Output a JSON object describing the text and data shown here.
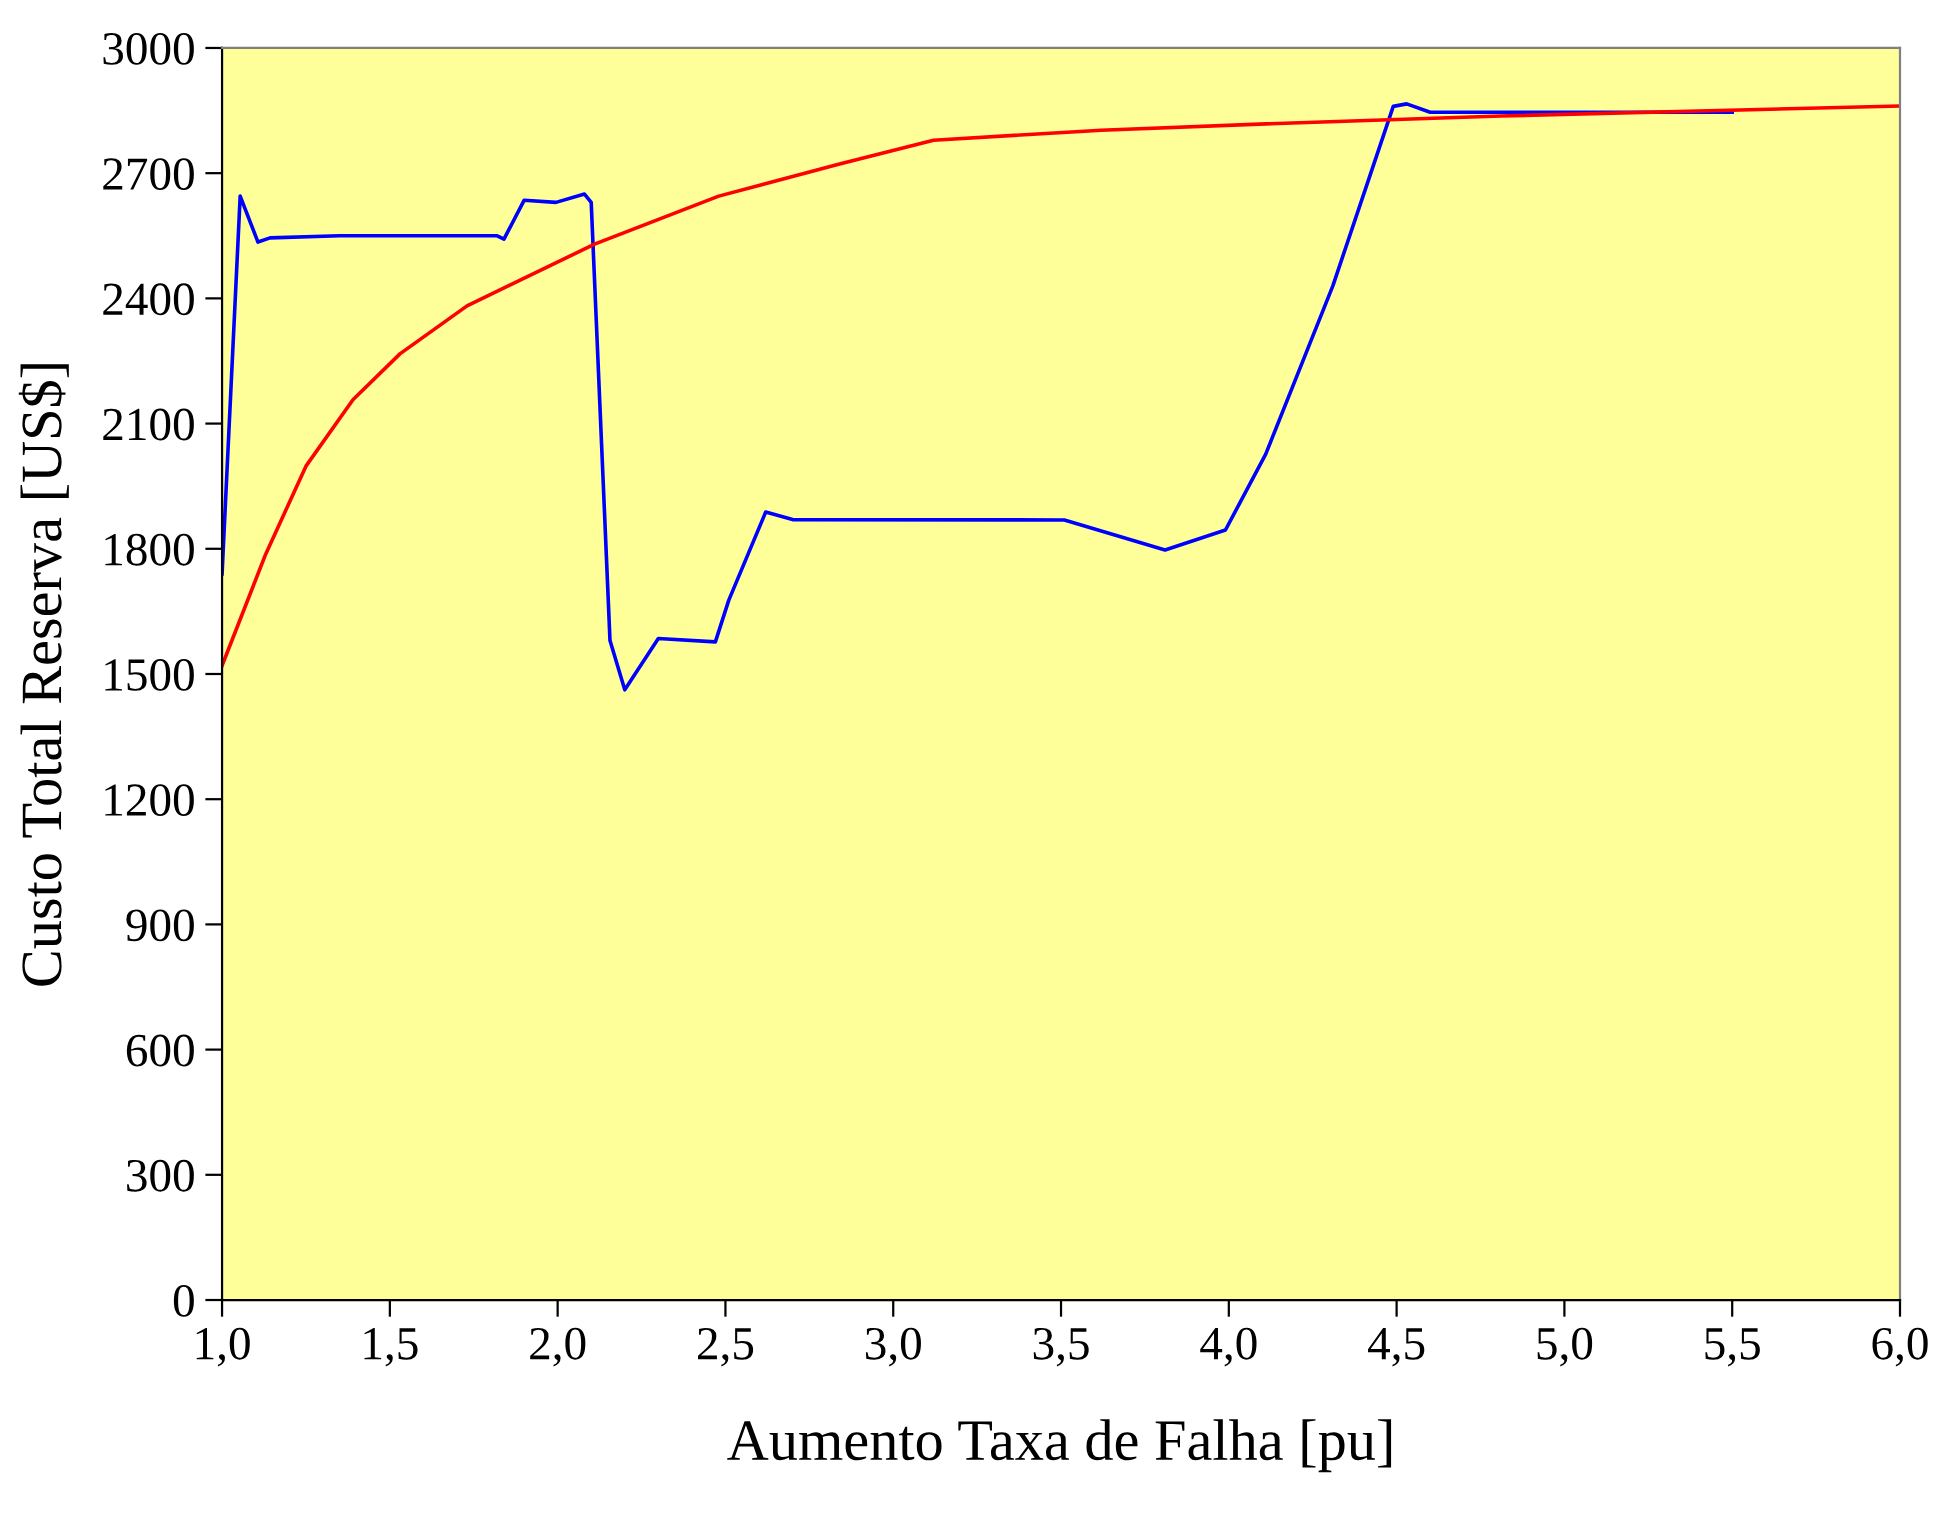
{
  "chart_data": {
    "type": "line",
    "xlabel": "Aumento Taxa de Falha [pu]",
    "ylabel": "Custo Total Reserva [US$]",
    "xlim": [
      1,
      6
    ],
    "ylim": [
      0,
      3000
    ],
    "xticks": [
      {
        "value": 1,
        "label": "1,0"
      },
      {
        "value": 1.5,
        "label": "1,5"
      },
      {
        "value": 2,
        "label": "2,0"
      },
      {
        "value": 2.5,
        "label": "2,5"
      },
      {
        "value": 3,
        "label": "3,0"
      },
      {
        "value": 3.5,
        "label": "3,5"
      },
      {
        "value": 4,
        "label": "4,0"
      },
      {
        "value": 4.5,
        "label": "4,5"
      },
      {
        "value": 5,
        "label": "5,0"
      },
      {
        "value": 5.5,
        "label": "5,5"
      },
      {
        "value": 6,
        "label": "6,0"
      }
    ],
    "yticks": [
      0,
      300,
      600,
      900,
      1200,
      1500,
      1800,
      2100,
      2400,
      2700,
      3000
    ],
    "grid": false,
    "legend": false,
    "marker": "none",
    "line_style": "solid",
    "series": [
      {
        "color": "#0000ff",
        "x": [
          1.0,
          1.054,
          1.107,
          1.143,
          1.35,
          1.82,
          1.84,
          1.9,
          1.995,
          2.08,
          2.1,
          2.156,
          2.2,
          2.3,
          2.47,
          2.51,
          2.62,
          2.7,
          3.51,
          3.81,
          3.99,
          4.11,
          4.31,
          4.49,
          4.53,
          4.6,
          5.5
        ],
        "values": [
          1740,
          2645,
          2535,
          2545,
          2550,
          2550,
          2542,
          2635,
          2630,
          2650,
          2630,
          1580,
          1462,
          1585,
          1577,
          1677,
          1888,
          1870,
          1869,
          1797,
          1845,
          2027,
          2430,
          2860,
          2866,
          2846,
          2846
        ]
      },
      {
        "color": "#ff0000",
        "x": [
          1.0,
          1.13,
          1.25,
          1.39,
          1.53,
          1.73,
          2.11,
          2.48,
          2.84,
          3.12,
          3.62,
          4.11,
          4.81,
          6.0
        ],
        "values": [
          1520,
          1787,
          1998,
          2157,
          2267,
          2382,
          2530,
          2645,
          2722,
          2779,
          2803,
          2818,
          2837,
          2861
        ]
      }
    ]
  }
}
